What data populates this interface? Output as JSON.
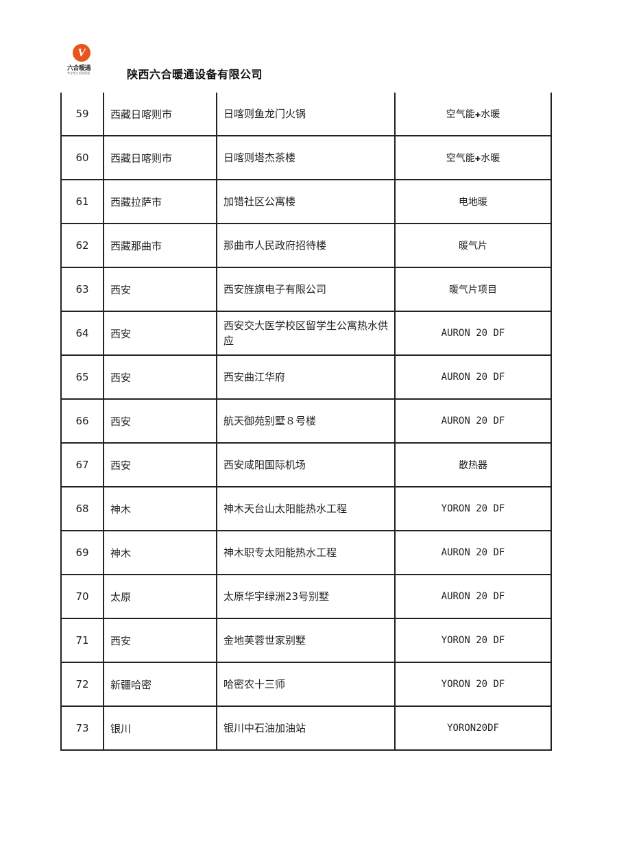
{
  "header": {
    "logo_text": "六合暖通",
    "logo_subtext": "专业专注 舒适家居",
    "company": "陕西六合暖通设备有限公司"
  },
  "table": {
    "rows": [
      {
        "no": "59",
        "city": "西藏日喀则市",
        "project": "日喀则鱼龙门火锅",
        "product": "空气能✚水暖"
      },
      {
        "no": "60",
        "city": "西藏日喀则市",
        "project": "日喀则塔杰茶楼",
        "product": "空气能✚水暖"
      },
      {
        "no": "61",
        "city": "西藏拉萨市",
        "project": "加错社区公寓楼",
        "product": "电地暖"
      },
      {
        "no": "62",
        "city": "西藏那曲市",
        "project": "那曲市人民政府招待楼",
        "product": "暖气片"
      },
      {
        "no": "63",
        "city": "西安",
        "project": "西安旌旗电子有限公司",
        "product": "暖气片项目"
      },
      {
        "no": "64",
        "city": "西安",
        "project": "西安交大医学校区留学生公寓热水供应",
        "product": "AURON 20 DF"
      },
      {
        "no": "65",
        "city": "西安",
        "project": "西安曲江华府",
        "product": "AURON 20 DF"
      },
      {
        "no": "66",
        "city": "西安",
        "project": "航天御苑别墅８号楼",
        "product": "AURON 20 DF"
      },
      {
        "no": "67",
        "city": "西安",
        "project": "西安咸阳国际机场",
        "product": "散热器"
      },
      {
        "no": "68",
        "city": "神木",
        "project": "神木天台山太阳能热水工程",
        "product": "YORON 20 DF"
      },
      {
        "no": "69",
        "city": "神木",
        "project": "神木职专太阳能热水工程",
        "product": "AURON 20 DF"
      },
      {
        "no": "70",
        "city": "太原",
        "project": "太原华宇绿洲23号别墅",
        "product": "AURON 20 DF"
      },
      {
        "no": "71",
        "city": "西安",
        "project": "金地芙蓉世家别墅",
        "product": "YORON 20 DF"
      },
      {
        "no": "72",
        "city": "新疆哈密",
        "project": "哈密农十三师",
        "product": "YORON 20 DF"
      },
      {
        "no": "73",
        "city": "银川",
        "project": "银川中石油加油站",
        "product": "YORON20DF"
      }
    ]
  }
}
